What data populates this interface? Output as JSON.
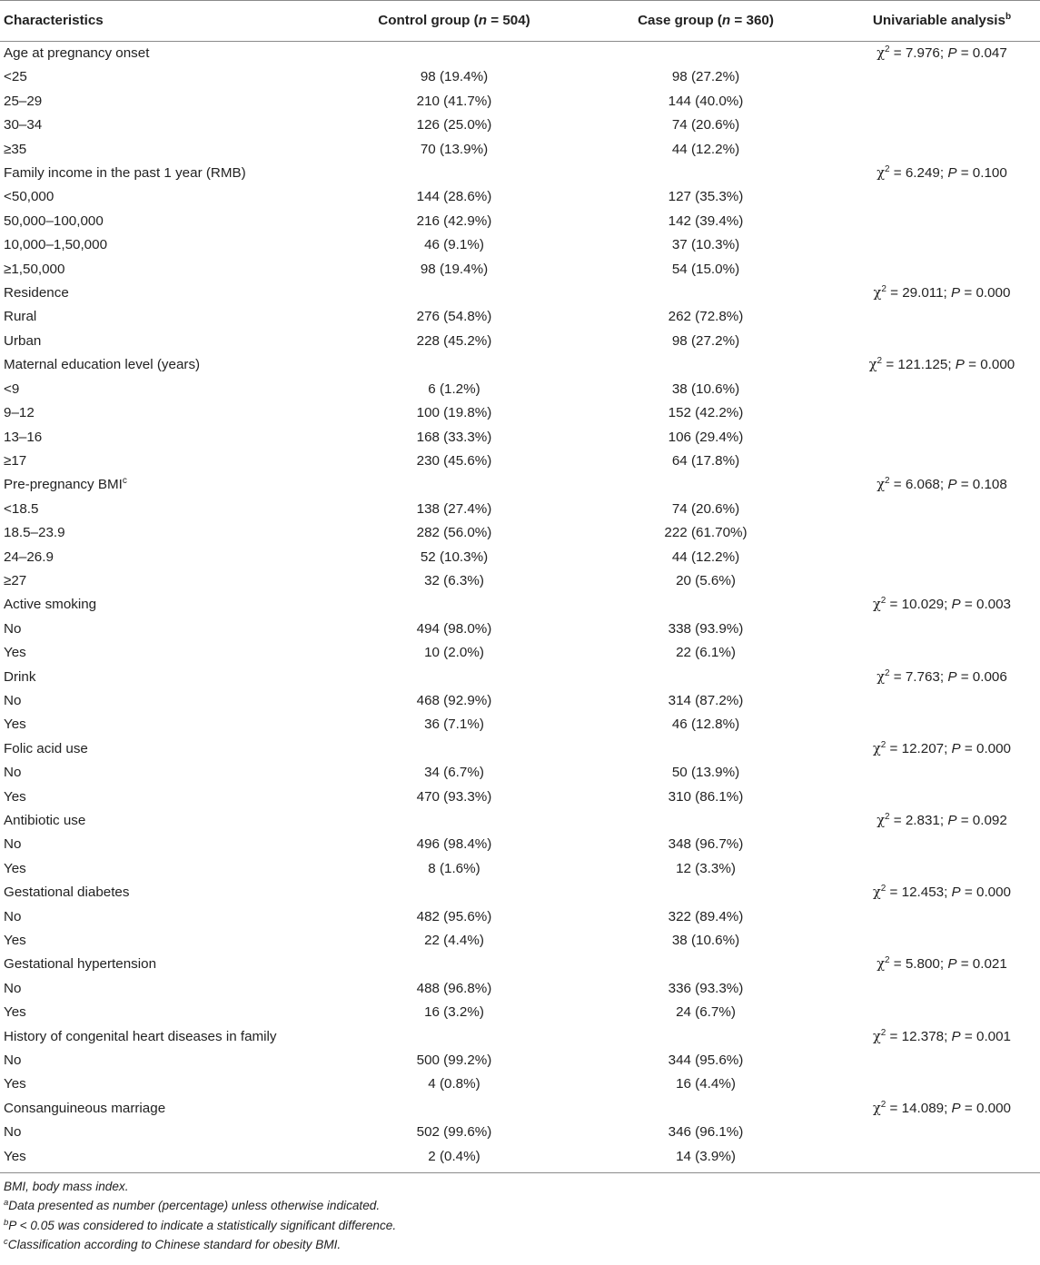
{
  "header": {
    "characteristics": "Characteristics",
    "control_label": "Control group (",
    "control_n": "n",
    "control_value": " = 504)",
    "case_label": "Case group (",
    "case_n": "n",
    "case_value": " = 360)",
    "univariable": "Univariable analysis",
    "univariable_sup": "b"
  },
  "rows": [
    {
      "label": "Age at pregnancy onset",
      "control": "",
      "case": "",
      "chi": "7.976",
      "p": "0.047"
    },
    {
      "label": "<25",
      "control": "98 (19.4%)",
      "case": "98 (27.2%)"
    },
    {
      "label": "25–29",
      "control": "210 (41.7%)",
      "case": "144 (40.0%)"
    },
    {
      "label": "30–34",
      "control": "126 (25.0%)",
      "case": "74 (20.6%)"
    },
    {
      "label": "≥35",
      "control": "70 (13.9%)",
      "case": "44 (12.2%)"
    },
    {
      "label": "Family income in the past 1 year (RMB)",
      "control": "",
      "case": "",
      "chi": "6.249",
      "p": "0.100"
    },
    {
      "label": "<50,000",
      "control": "144 (28.6%)",
      "case": "127 (35.3%)"
    },
    {
      "label": "50,000–100,000",
      "control": "216 (42.9%)",
      "case": "142 (39.4%)"
    },
    {
      "label": "10,000–1,50,000",
      "control": "46 (9.1%)",
      "case": "37 (10.3%)"
    },
    {
      "label": "≥1,50,000",
      "control": "98 (19.4%)",
      "case": "54 (15.0%)"
    },
    {
      "label": "Residence",
      "control": "",
      "case": "",
      "chi": "29.011",
      "p": "0.000"
    },
    {
      "label": "Rural",
      "control": "276 (54.8%)",
      "case": "262 (72.8%)"
    },
    {
      "label": "Urban",
      "control": "228 (45.2%)",
      "case": "98 (27.2%)"
    },
    {
      "label": "Maternal education level (years)",
      "control": "",
      "case": "",
      "chi": "121.125",
      "p": "0.000"
    },
    {
      "label": "<9",
      "control": "6 (1.2%)",
      "case": "38 (10.6%)"
    },
    {
      "label": "9–12",
      "control": "100 (19.8%)",
      "case": "152 (42.2%)"
    },
    {
      "label": "13–16",
      "control": "168 (33.3%)",
      "case": "106 (29.4%)"
    },
    {
      "label": "≥17",
      "control": "230 (45.6%)",
      "case": "64 (17.8%)"
    },
    {
      "label": "Pre-pregnancy BMI",
      "label_sup": "c",
      "control": "",
      "case": "",
      "chi": "6.068",
      "p": "0.108"
    },
    {
      "label": "<18.5",
      "control": "138 (27.4%)",
      "case": "74 (20.6%)"
    },
    {
      "label": "18.5–23.9",
      "control": "282 (56.0%)",
      "case": "222 (61.70%)"
    },
    {
      "label": "24–26.9",
      "control": "52 (10.3%)",
      "case": "44 (12.2%)"
    },
    {
      "label": "≥27",
      "control": "32 (6.3%)",
      "case": "20 (5.6%)"
    },
    {
      "label": "Active smoking",
      "control": "",
      "case": "",
      "chi": "10.029",
      "p": "0.003"
    },
    {
      "label": "No",
      "control": "494 (98.0%)",
      "case": "338 (93.9%)"
    },
    {
      "label": "Yes",
      "control": "10 (2.0%)",
      "case": "22 (6.1%)"
    },
    {
      "label": "Drink",
      "control": "",
      "case": "",
      "chi": "7.763",
      "p": "0.006"
    },
    {
      "label": "No",
      "control": "468 (92.9%)",
      "case": "314 (87.2%)"
    },
    {
      "label": "Yes",
      "control": "36 (7.1%)",
      "case": "46 (12.8%)"
    },
    {
      "label": "Folic acid use",
      "control": "",
      "case": "",
      "chi": "12.207",
      "p": "0.000"
    },
    {
      "label": "No",
      "control": "34 (6.7%)",
      "case": "50 (13.9%)"
    },
    {
      "label": "Yes",
      "control": "470 (93.3%)",
      "case": "310 (86.1%)"
    },
    {
      "label": "Antibiotic use",
      "control": "",
      "case": "",
      "chi": "2.831",
      "p": "0.092"
    },
    {
      "label": "No",
      "control": "496 (98.4%)",
      "case": "348 (96.7%)"
    },
    {
      "label": "Yes",
      "control": "8 (1.6%)",
      "case": "12 (3.3%)"
    },
    {
      "label": "Gestational diabetes",
      "control": "",
      "case": "",
      "chi": "12.453",
      "p": "0.000"
    },
    {
      "label": "No",
      "control": "482 (95.6%)",
      "case": "322 (89.4%)"
    },
    {
      "label": "Yes",
      "control": "22 (4.4%)",
      "case": "38 (10.6%)"
    },
    {
      "label": "Gestational hypertension",
      "control": "",
      "case": "",
      "chi": "5.800",
      "p": "0.021"
    },
    {
      "label": "No",
      "control": "488 (96.8%)",
      "case": "336 (93.3%)"
    },
    {
      "label": "Yes",
      "control": "16 (3.2%)",
      "case": "24 (6.7%)"
    },
    {
      "label": "History of congenital heart diseases in family",
      "control": "",
      "case": "",
      "chi": "12.378",
      "p": "0.001"
    },
    {
      "label": "No",
      "control": "500 (99.2%)",
      "case": "344 (95.6%)"
    },
    {
      "label": "Yes",
      "control": "4 (0.8%)",
      "case": "16 (4.4%)"
    },
    {
      "label": "Consanguineous marriage",
      "control": "",
      "case": "",
      "chi": "14.089",
      "p": "0.000"
    },
    {
      "label": "No",
      "control": "502 (99.6%)",
      "case": "346 (96.1%)"
    },
    {
      "label": "Yes",
      "control": "2 (0.4%)",
      "case": "14 (3.9%)"
    }
  ],
  "stat_format": {
    "chi_symbol": "χ",
    "chi_exp": "2",
    "eq": " = ",
    "sep": "; ",
    "p_symbol": "P"
  },
  "footnotes": [
    {
      "sup": "",
      "text": "BMI, body mass index."
    },
    {
      "sup": "a",
      "text": "Data presented as number (percentage) unless otherwise indicated."
    },
    {
      "sup": "b",
      "text": "P < 0.05 was considered to indicate a statistically significant difference."
    },
    {
      "sup": "c",
      "text": "Classification according to Chinese standard for obesity BMI."
    }
  ]
}
